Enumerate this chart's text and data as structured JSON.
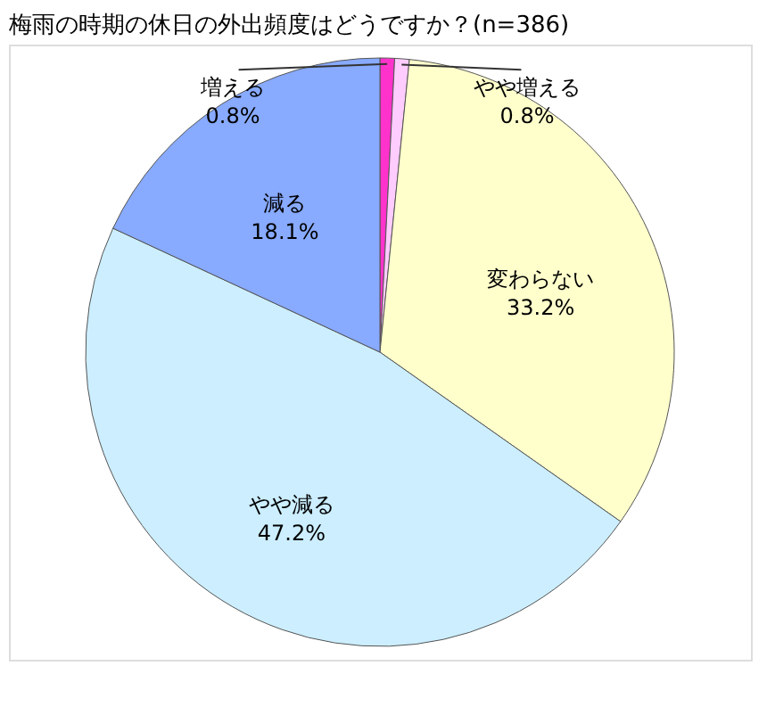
{
  "chart_data": {
    "type": "pie",
    "title": "梅雨の時期の休日の外出頻度はどうですか？(n=386)",
    "categories": [
      "増える",
      "やや増える",
      "変わらない",
      "やや減る",
      "減る"
    ],
    "values": [
      0.8,
      0.8,
      33.2,
      47.2,
      18.1
    ],
    "value_labels": [
      "0.8%",
      "0.8%",
      "33.2%",
      "47.2%",
      "18.1%"
    ],
    "colors": [
      "#ff33cc",
      "#ffccff",
      "#ffffcc",
      "#cceeff",
      "#88aaff"
    ],
    "legend": false
  }
}
